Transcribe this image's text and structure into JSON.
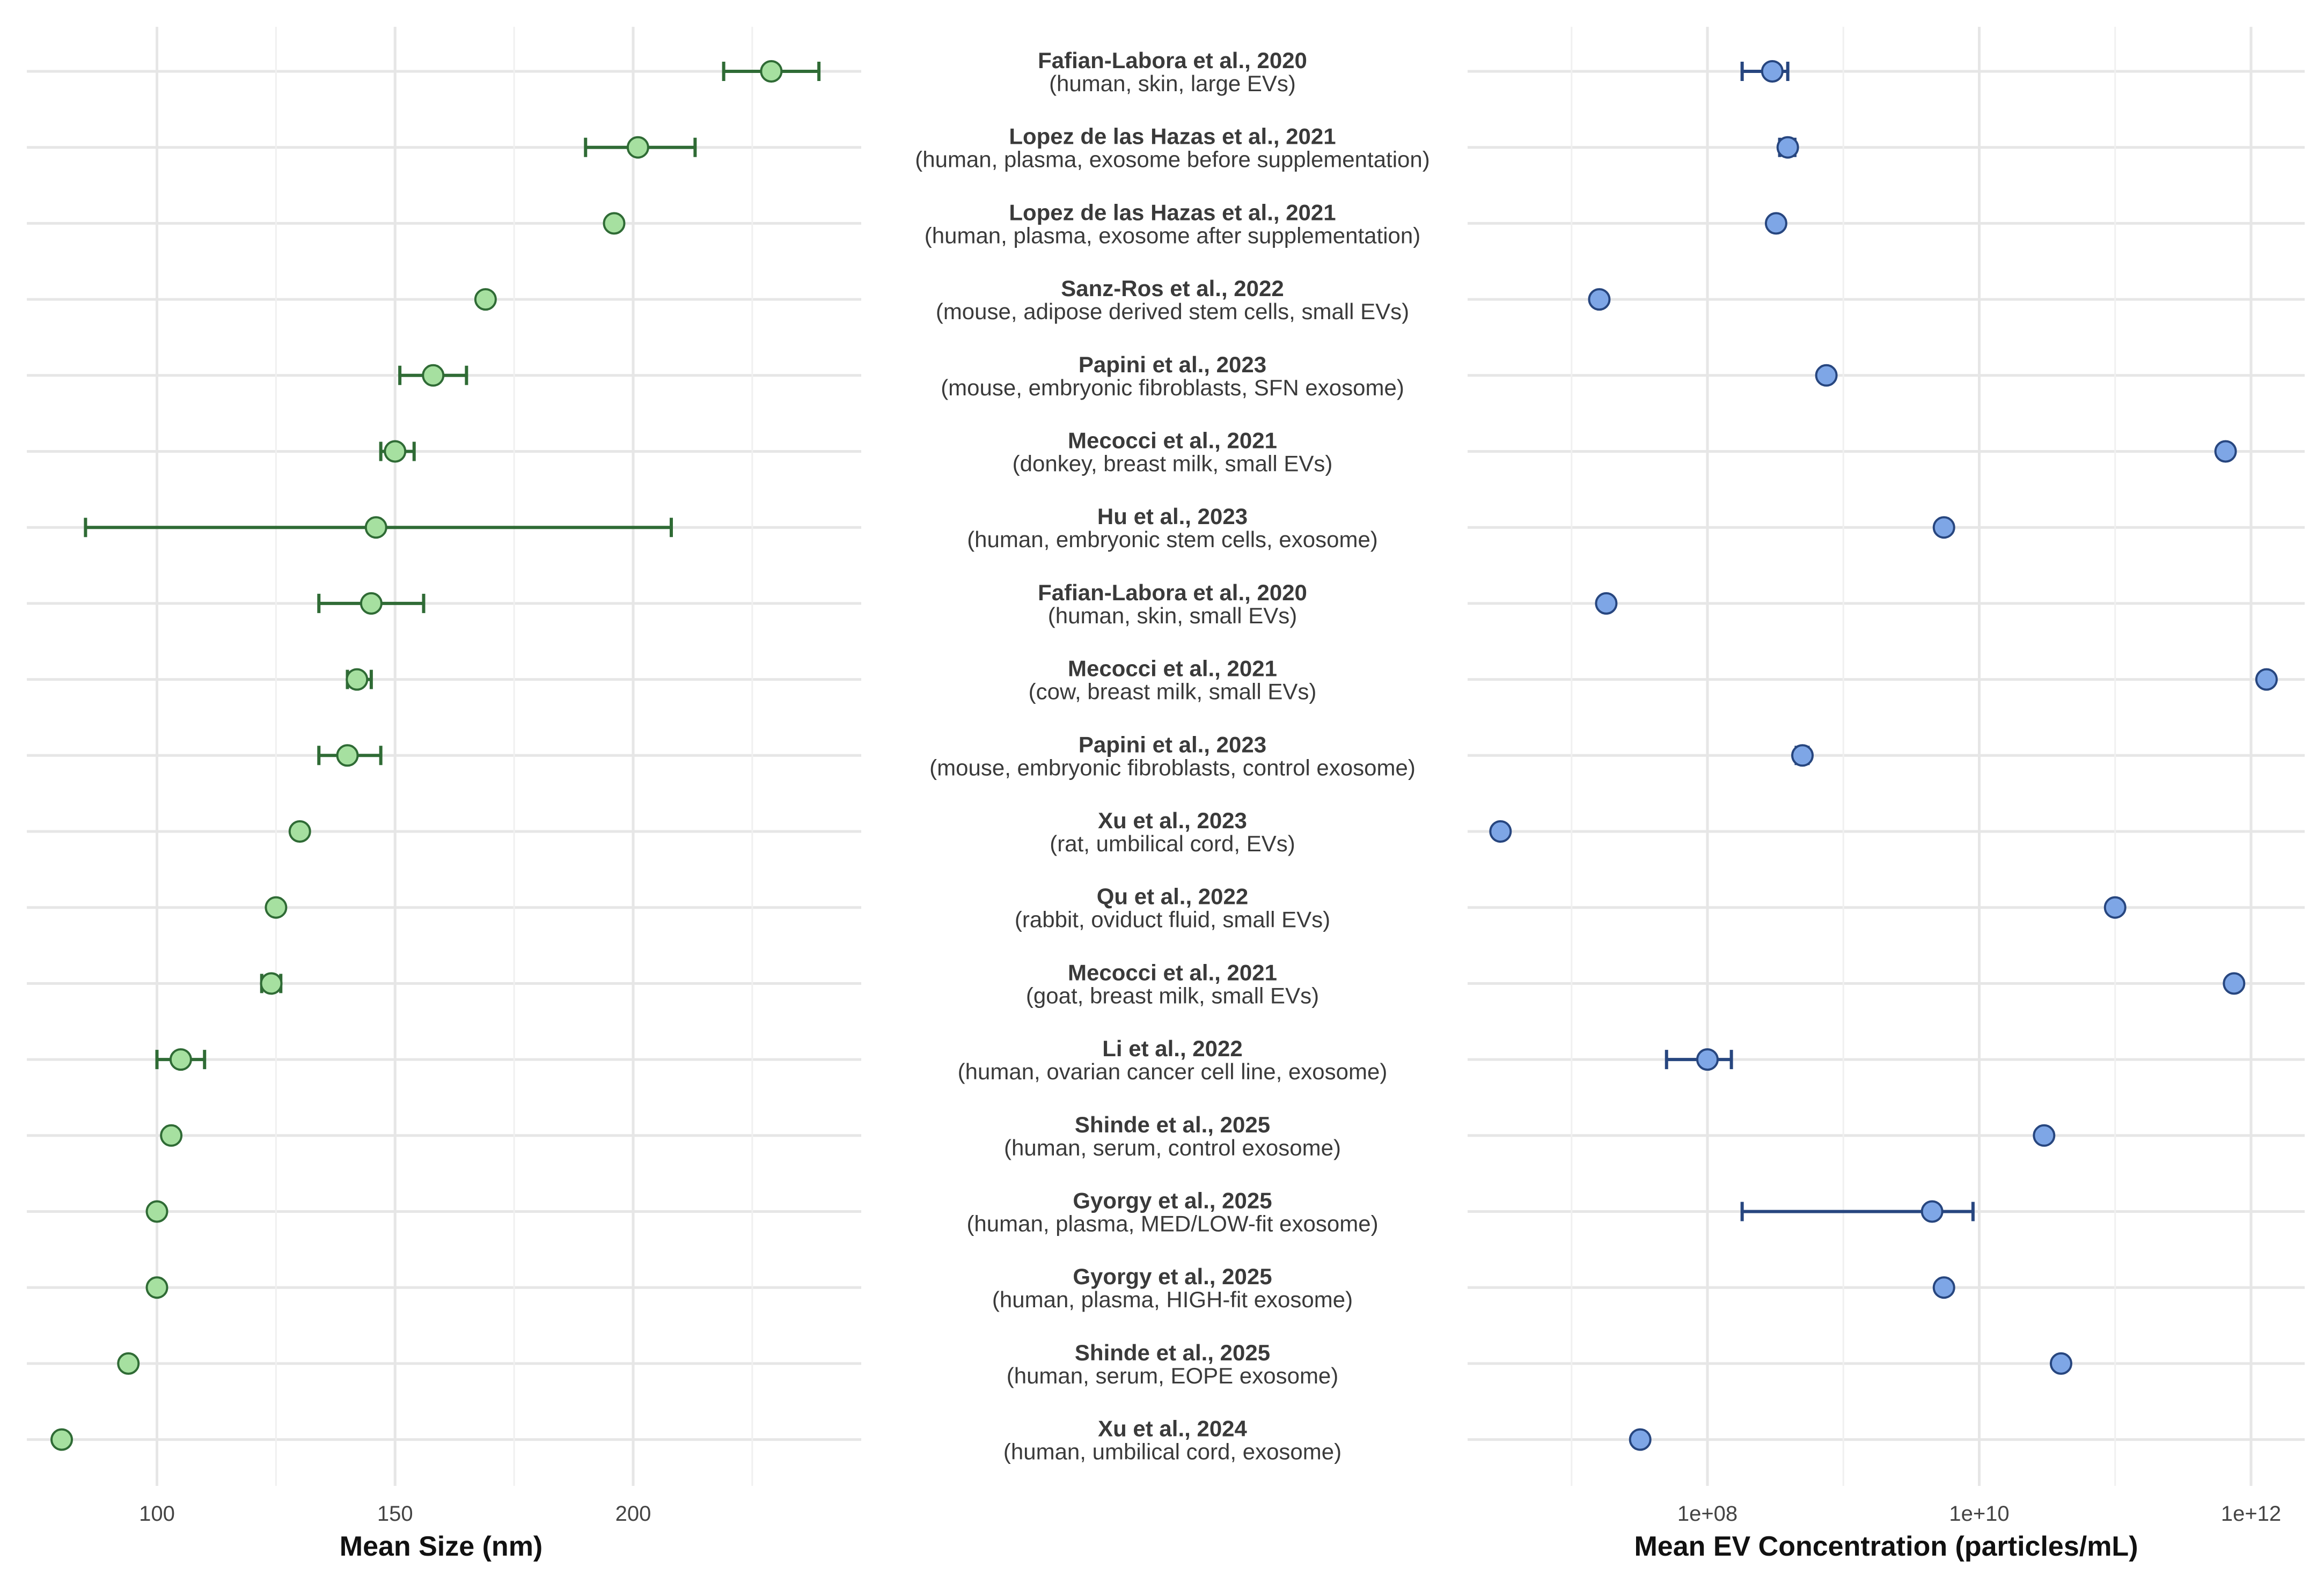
{
  "colors": {
    "size_point_fill": "#a6e0a0",
    "size_point_stroke": "#2f6b35",
    "size_errorbar": "#2f6b35",
    "conc_point_fill": "#7ea6e6",
    "conc_point_stroke": "#27467f",
    "conc_errorbar": "#27467f",
    "grid": "#e6e6e6",
    "text": "#3a3a3a"
  },
  "chart_data": [
    {
      "type": "scatter",
      "panel": "left",
      "xlabel": "Mean Size (nm)",
      "xlim": [
        75,
        247
      ],
      "x_ticks": [
        100,
        150,
        200
      ],
      "x_tick_labels": [
        "100",
        "150",
        "200"
      ],
      "grid": true,
      "error_bars": true,
      "values": [
        229,
        201,
        196,
        169,
        158,
        150,
        146,
        145,
        142,
        140,
        130,
        125,
        124,
        105,
        103,
        100,
        100,
        94,
        80
      ],
      "error_low": [
        219,
        190,
        null,
        null,
        151,
        147,
        85,
        134,
        140,
        134,
        null,
        null,
        122,
        100,
        null,
        null,
        null,
        null,
        null
      ],
      "error_high": [
        239,
        213,
        null,
        null,
        165,
        154,
        208,
        156,
        145,
        147,
        null,
        null,
        126,
        110,
        null,
        null,
        null,
        null,
        null
      ]
    },
    {
      "type": "scatter",
      "panel": "right",
      "xlabel": "Mean EV Concentration (particles/mL)",
      "x_scale": "log",
      "xlim": [
        1000000.0,
        2000000000000.0
      ],
      "x_ticks": [
        100000000.0,
        10000000000.0,
        1000000000000.0
      ],
      "x_tick_labels": [
        "1e+08",
        "1e+10",
        "1e+12"
      ],
      "grid": true,
      "error_bars": true,
      "values": [
        300000000.0,
        390000000.0,
        320000000.0,
        16000000.0,
        750000000.0,
        650000000000.0,
        5500000000.0,
        18000000.0,
        1300000000000.0,
        500000000.0,
        3000000.0,
        100000000000.0,
        750000000000.0,
        100000000.0,
        30000000000.0,
        4500000000.0,
        5500000000.0,
        40000000000.0,
        32000000.0
      ],
      "error_low": [
        180000000.0,
        340000000.0,
        null,
        null,
        null,
        null,
        null,
        null,
        null,
        450000000.0,
        null,
        null,
        null,
        50000000.0,
        null,
        180000000.0,
        null,
        null,
        null
      ],
      "error_high": [
        390000000.0,
        440000000.0,
        null,
        null,
        null,
        null,
        null,
        null,
        null,
        550000000.0,
        null,
        null,
        null,
        150000000.0,
        null,
        9000000000.0,
        null,
        null,
        null
      ]
    }
  ],
  "studies": [
    {
      "title": "Fafian-Labora et al., 2020",
      "detail": "(human, skin, large EVs)"
    },
    {
      "title": "Lopez de las Hazas et al., 2021",
      "detail": "(human, plasma, exosome before supplementation)"
    },
    {
      "title": "Lopez de las Hazas et al., 2021",
      "detail": "(human, plasma, exosome after supplementation)"
    },
    {
      "title": "Sanz-Ros et al., 2022",
      "detail": "(mouse, adipose derived stem cells, small EVs)"
    },
    {
      "title": "Papini et al., 2023",
      "detail": "(mouse, embryonic fibroblasts, SFN exosome)"
    },
    {
      "title": "Mecocci et al., 2021",
      "detail": "(donkey, breast milk, small EVs)"
    },
    {
      "title": "Hu et al., 2023",
      "detail": "(human, embryonic stem cells, exosome)"
    },
    {
      "title": "Fafian-Labora et al., 2020",
      "detail": "(human, skin, small EVs)"
    },
    {
      "title": "Mecocci et al., 2021",
      "detail": "(cow, breast milk, small EVs)"
    },
    {
      "title": "Papini et al., 2023",
      "detail": "(mouse, embryonic fibroblasts, control exosome)"
    },
    {
      "title": "Xu et al., 2023",
      "detail": "(rat, umbilical cord, EVs)"
    },
    {
      "title": "Qu et al., 2022",
      "detail": "(rabbit, oviduct fluid, small EVs)"
    },
    {
      "title": "Mecocci et al., 2021",
      "detail": "(goat, breast milk, small EVs)"
    },
    {
      "title": "Li et al., 2022",
      "detail": "(human, ovarian cancer cell line, exosome)"
    },
    {
      "title": "Shinde et al., 2025",
      "detail": "(human, serum, control exosome)"
    },
    {
      "title": "Gyorgy et al., 2025",
      "detail": "(human, plasma, MED/LOW-fit exosome)"
    },
    {
      "title": "Gyorgy et al., 2025",
      "detail": "(human, plasma, HIGH-fit exosome)"
    },
    {
      "title": "Shinde et al., 2025",
      "detail": "(human, serum, EOPE exosome)"
    },
    {
      "title": "Xu et al., 2024",
      "detail": "(human, umbilical cord, exosome)"
    }
  ]
}
